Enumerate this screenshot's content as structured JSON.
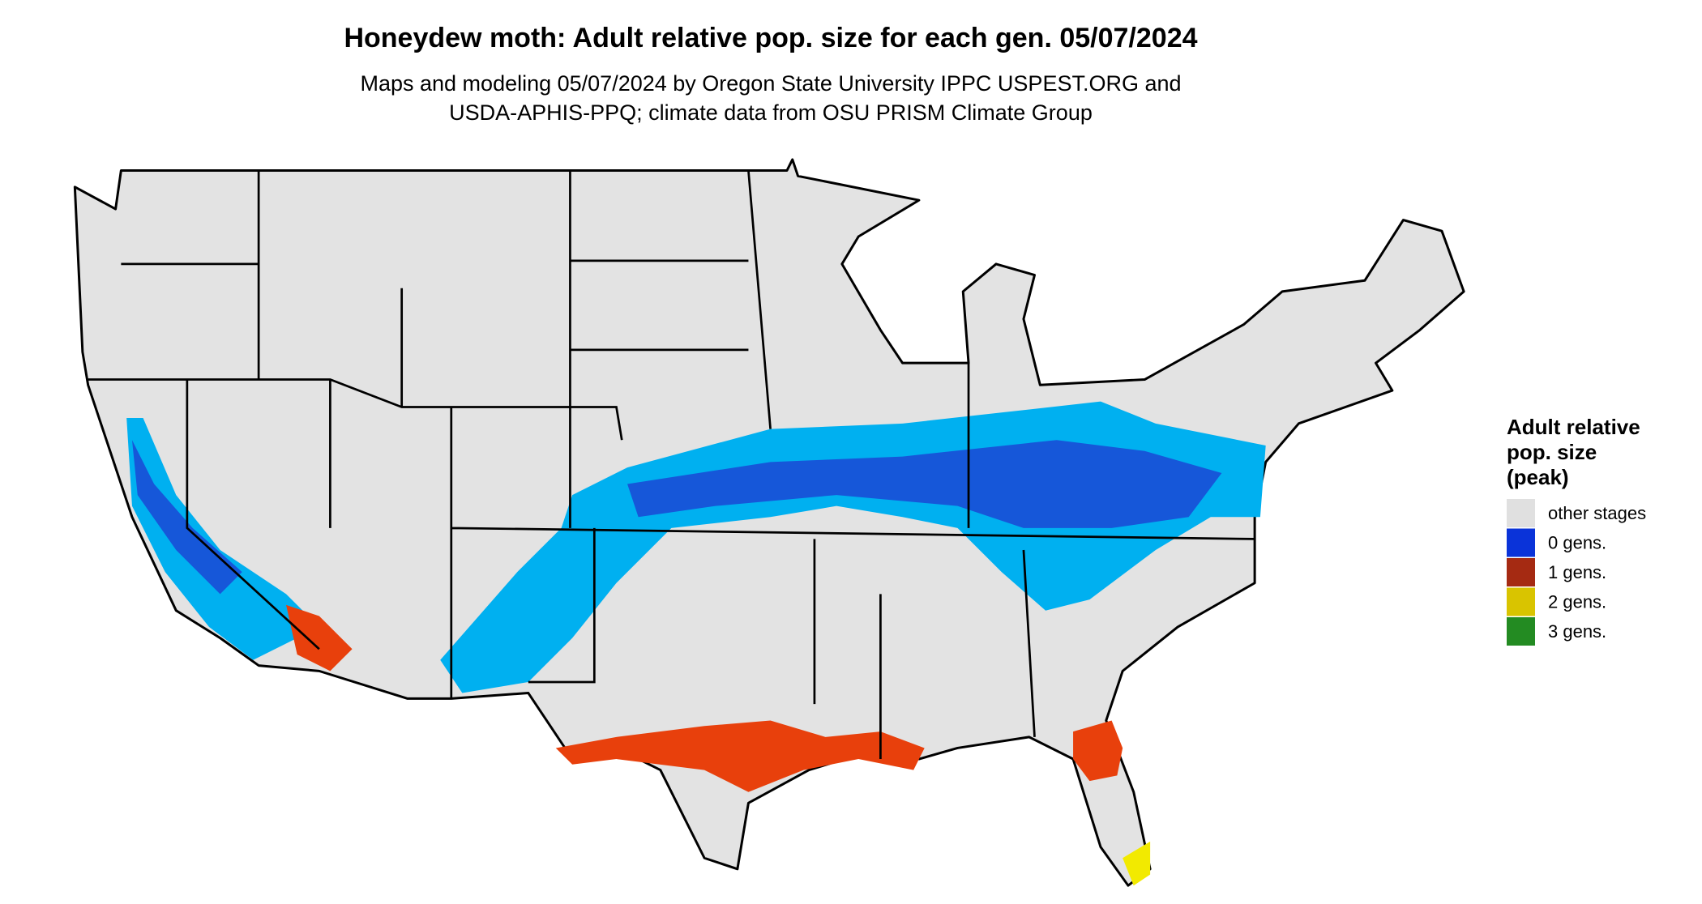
{
  "header": {
    "title": "Honeydew moth: Adult relative pop. size for each gen. 05/07/2024",
    "subtitle": [
      "Maps and modeling 05/07/2024 by Oregon State University IPPC USPEST.ORG and",
      "USDA-APHIS-PPQ; climate data from OSU PRISM Climate Group"
    ]
  },
  "legend": {
    "title": [
      "Adult relative",
      "pop. size",
      "(peak)"
    ],
    "items": [
      {
        "label": "other stages",
        "color": "#e0e0e0"
      },
      {
        "label": "0 gens.",
        "color": "#0a33d9"
      },
      {
        "label": "1 gens.",
        "color": "#a52a12"
      },
      {
        "label": "2 gens.",
        "color": "#d9c400"
      },
      {
        "label": "3 gens.",
        "color": "#238b22"
      }
    ]
  }
}
